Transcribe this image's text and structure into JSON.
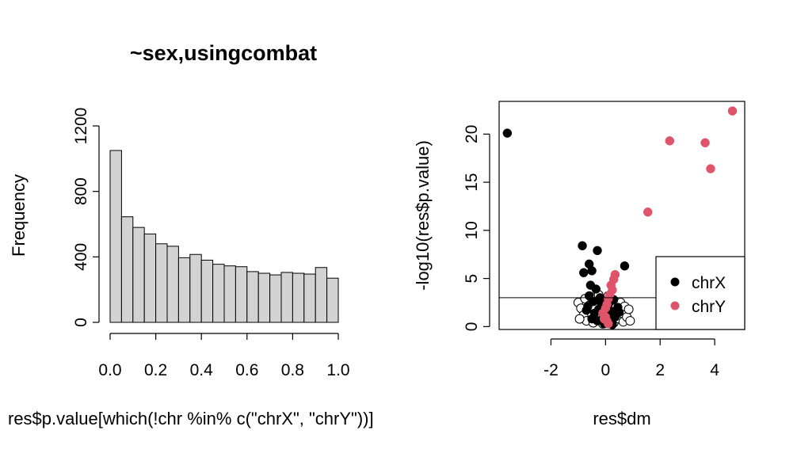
{
  "chart_data": [
    {
      "type": "bar",
      "subtype": "histogram",
      "title": "~sex,usingcombat",
      "xlabel": "res$p.value[which(!chr %in% c(\"chrX\", \"chrY\"))]",
      "ylabel": "Frequency",
      "xlim": [
        0,
        1
      ],
      "ylim": [
        0,
        1200
      ],
      "x_ticks": [
        "0.0",
        "0.2",
        "0.4",
        "0.6",
        "0.8",
        "1.0"
      ],
      "y_ticks": [
        "0",
        "400",
        "800",
        "1200"
      ],
      "bin_width": 0.05,
      "bin_starts": [
        0.0,
        0.05,
        0.1,
        0.15,
        0.2,
        0.25,
        0.3,
        0.35,
        0.4,
        0.45,
        0.5,
        0.55,
        0.6,
        0.65,
        0.7,
        0.75,
        0.8,
        0.85,
        0.9,
        0.95
      ],
      "values": [
        1050,
        645,
        580,
        540,
        480,
        465,
        395,
        415,
        380,
        355,
        345,
        340,
        310,
        300,
        290,
        305,
        300,
        295,
        335,
        270
      ],
      "bar_color": "#d3d3d3"
    },
    {
      "type": "scatter",
      "xlabel": "res$dm",
      "ylabel": "-log10(res$p.value)",
      "xlim": [
        -3.9,
        5.1
      ],
      "ylim": [
        -0.3,
        23.4
      ],
      "x_ticks": [
        "-2",
        "0",
        "2",
        "4"
      ],
      "y_ticks": [
        "0",
        "5",
        "10",
        "15",
        "20"
      ],
      "hline": 3,
      "legend_position": "bottom-right",
      "legend": [
        {
          "label": "chrX",
          "color": "#000000"
        },
        {
          "label": "chrY",
          "color": "#df536b"
        }
      ],
      "series": [
        {
          "name": "chrX",
          "color": "#000000",
          "points": [
            [
              -3.6,
              20.1
            ],
            [
              -0.85,
              8.4
            ],
            [
              -0.3,
              7.9
            ],
            [
              0.7,
              6.3
            ],
            [
              -0.6,
              6.5
            ],
            [
              -0.5,
              5.8
            ],
            [
              -0.8,
              5.6
            ],
            [
              -0.55,
              4.3
            ],
            [
              -0.35,
              3.9
            ],
            [
              -0.6,
              3.2
            ],
            [
              -0.2,
              3.0
            ],
            [
              0.3,
              2.8
            ],
            [
              -0.45,
              2.6
            ],
            [
              -0.15,
              2.4
            ],
            [
              0.1,
              2.3
            ],
            [
              -0.65,
              2.1
            ],
            [
              0.45,
              2.0
            ],
            [
              -0.25,
              1.8
            ],
            [
              0.2,
              1.6
            ],
            [
              -0.4,
              1.4
            ],
            [
              0.05,
              1.2
            ],
            [
              -0.1,
              0.9
            ],
            [
              0.35,
              1.0
            ],
            [
              -0.3,
              0.6
            ],
            [
              0.15,
              0.5
            ],
            [
              -0.05,
              0.3
            ],
            [
              0.25,
              0.2
            ],
            [
              -0.5,
              0.8
            ],
            [
              0.5,
              1.5
            ],
            [
              -0.7,
              1.7
            ]
          ]
        },
        {
          "name": "chrY",
          "color": "#df536b",
          "points": [
            [
              4.65,
              22.4
            ],
            [
              2.35,
              19.3
            ],
            [
              3.65,
              19.1
            ],
            [
              3.85,
              16.4
            ],
            [
              1.55,
              11.9
            ],
            [
              0.35,
              5.4
            ],
            [
              0.3,
              4.9
            ],
            [
              0.2,
              4.3
            ],
            [
              0.25,
              3.8
            ],
            [
              0.15,
              3.3
            ],
            [
              0.1,
              2.9
            ],
            [
              0.05,
              2.3
            ],
            [
              0.0,
              1.9
            ],
            [
              -0.1,
              1.4
            ],
            [
              0.0,
              1.0
            ],
            [
              0.05,
              0.6
            ],
            [
              0.1,
              0.3
            ],
            [
              -0.05,
              0.8
            ]
          ]
        },
        {
          "name": "",
          "color": "#000000",
          "marker": "open",
          "points": [
            [
              -1.0,
              2.5
            ],
            [
              -0.9,
              1.9
            ],
            [
              -0.8,
              1.2
            ],
            [
              -0.75,
              2.9
            ],
            [
              -0.7,
              0.6
            ],
            [
              -0.6,
              2.2
            ],
            [
              -0.5,
              1.3
            ],
            [
              -0.45,
              0.4
            ],
            [
              -0.35,
              2.7
            ],
            [
              -0.3,
              1.6
            ],
            [
              -0.2,
              0.9
            ],
            [
              -0.15,
              2.0
            ],
            [
              -0.1,
              0.3
            ],
            [
              0.0,
              2.6
            ],
            [
              0.05,
              1.5
            ],
            [
              0.12,
              0.7
            ],
            [
              0.2,
              2.9
            ],
            [
              0.25,
              1.1
            ],
            [
              0.3,
              0.4
            ],
            [
              0.38,
              2.3
            ],
            [
              0.42,
              1.7
            ],
            [
              0.5,
              0.8
            ],
            [
              0.55,
              2.5
            ],
            [
              0.6,
              1.4
            ],
            [
              0.65,
              0.5
            ],
            [
              0.7,
              2.1
            ],
            [
              0.78,
              1.0
            ],
            [
              0.85,
              1.8
            ],
            [
              -0.55,
              3.1
            ],
            [
              -0.25,
              3.3
            ],
            [
              0.1,
              3.2
            ],
            [
              -0.95,
              0.8
            ],
            [
              0.9,
              0.6
            ],
            [
              -0.4,
              2.0
            ],
            [
              0.35,
              1.9
            ]
          ]
        }
      ]
    }
  ]
}
